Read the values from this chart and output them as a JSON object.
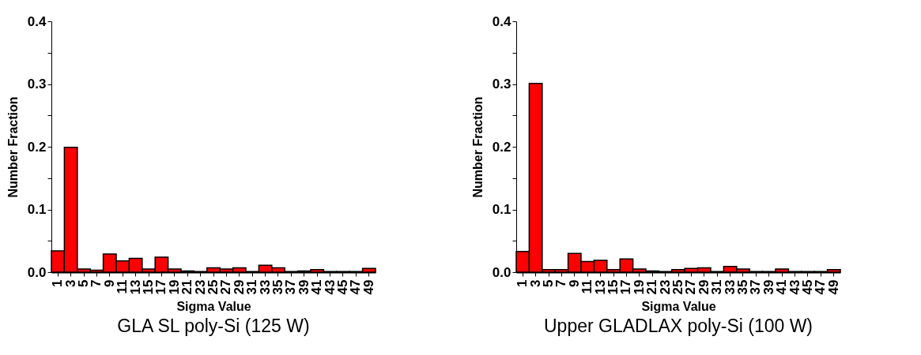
{
  "chart_data": [
    {
      "type": "bar",
      "title": "GLA SL poly-Si (125 W)",
      "xlabel": "Sigma Value",
      "ylabel": "Number Fraction",
      "categories": [
        "1",
        "3",
        "5",
        "7",
        "9",
        "11",
        "13",
        "15",
        "17",
        "19",
        "21",
        "23",
        "25",
        "27",
        "29",
        "31",
        "33",
        "35",
        "37",
        "39",
        "41",
        "43",
        "45",
        "47",
        "49"
      ],
      "values": [
        0.034,
        0.199,
        0.005,
        0.003,
        0.029,
        0.018,
        0.022,
        0.005,
        0.024,
        0.005,
        0.002,
        0.001,
        0.007,
        0.005,
        0.007,
        0.001,
        0.011,
        0.007,
        0.001,
        0.002,
        0.004,
        0.001,
        0.001,
        0.001,
        0.006
      ],
      "color": "#ff0000",
      "ylim": [
        0,
        0.4
      ],
      "yticks": [
        {
          "value": 0,
          "label": "0.0"
        },
        {
          "value": 0.05,
          "label": null
        },
        0.1,
        {
          "value": 0.15,
          "label": null
        },
        0.2,
        {
          "value": 0.25,
          "label": null
        },
        0.3,
        {
          "value": 0.35,
          "label": null
        },
        0.4
      ],
      "grid": false
    },
    {
      "type": "bar",
      "title": "Upper GLADLAX poly-Si (100 W)",
      "xlabel": "Sigma Value",
      "ylabel": "Number Fraction",
      "categories": [
        "1",
        "3",
        "5",
        "7",
        "9",
        "11",
        "13",
        "15",
        "17",
        "19",
        "21",
        "23",
        "25",
        "27",
        "29",
        "31",
        "33",
        "35",
        "37",
        "39",
        "41",
        "43",
        "45",
        "47",
        "49"
      ],
      "values": [
        0.033,
        0.301,
        0.004,
        0.004,
        0.03,
        0.017,
        0.019,
        0.004,
        0.021,
        0.005,
        0.002,
        0.001,
        0.004,
        0.006,
        0.007,
        0.001,
        0.009,
        0.005,
        0.001,
        0.001,
        0.005,
        0.001,
        0.001,
        0.001,
        0.004
      ],
      "color": "#ff0000",
      "ylim": [
        0,
        0.4
      ],
      "yticks": [
        {
          "value": 0,
          "label": "0.0"
        },
        {
          "value": 0.05,
          "label": null
        },
        0.1,
        {
          "value": 0.15,
          "label": null
        },
        0.2,
        {
          "value": 0.25,
          "label": null
        },
        0.3,
        {
          "value": 0.35,
          "label": null
        },
        0.4
      ],
      "grid": false
    }
  ]
}
